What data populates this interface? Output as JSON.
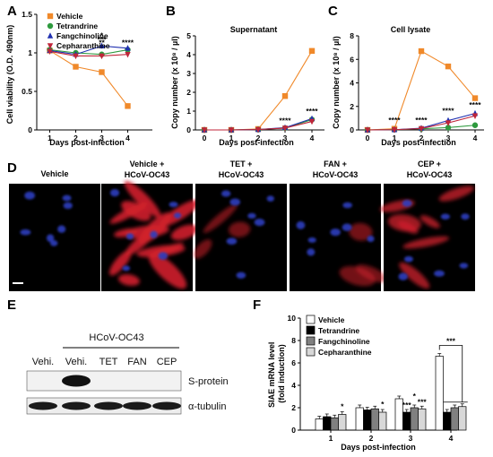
{
  "colors": {
    "vehicle": "#F0892A",
    "tetrandrine": "#2E9A3E",
    "fangchinoline": "#2030B0",
    "cepharanthine": "#C0263A",
    "star_blue": "#3FA7D8",
    "star_red": "#D81F3A",
    "cell_blue": "#2F3FBF",
    "cell_red": "#D0202C"
  },
  "chart_data": [
    {
      "panel": "A",
      "type": "line",
      "xlabel": "Days post-infection",
      "ylabel": "Cell viability (O.D. 490nm)",
      "x": [
        1,
        2,
        3,
        4
      ],
      "ylim": [
        0,
        1.5
      ],
      "yticks": [
        "0",
        "0.5",
        "1",
        "1.5"
      ],
      "legend": "top-left",
      "series": [
        {
          "name": "Vehicle",
          "values": [
            1.03,
            0.82,
            0.75,
            0.31
          ],
          "marker": "square",
          "color": "#F0892A"
        },
        {
          "name": "Tetrandrine",
          "values": [
            1.04,
            1.0,
            0.98,
            1.04
          ],
          "marker": "circle",
          "color": "#2E9A3E"
        },
        {
          "name": "Fangchinoline",
          "values": [
            1.03,
            0.98,
            1.09,
            1.06
          ],
          "marker": "triangle-up",
          "color": "#2030B0"
        },
        {
          "name": "Cepharanthine",
          "values": [
            1.02,
            0.96,
            0.96,
            0.98
          ],
          "marker": "triangle-down",
          "color": "#C0263A"
        }
      ],
      "annotations": [
        {
          "x": 3,
          "y": 1.19,
          "text": "*",
          "color": "#3FA7D8"
        },
        {
          "x": 3,
          "y": 1.14,
          "text": "***",
          "color": "#000000"
        },
        {
          "x": 3,
          "y": 1.1,
          "text": "**",
          "color": "#D81F3A"
        },
        {
          "x": 4,
          "y": 1.1,
          "text": "****",
          "color": "#000000"
        }
      ]
    },
    {
      "panel": "B",
      "type": "line",
      "title": "Supernatant",
      "xlabel": "Days post-infection",
      "ylabel": "Copy number (x 10⁸ / µl)",
      "x": [
        0,
        1,
        2,
        3,
        4
      ],
      "ylim": [
        0,
        5
      ],
      "yticks": [
        "0",
        "1",
        "2",
        "3",
        "4",
        "5"
      ],
      "series": [
        {
          "name": "Vehicle",
          "values": [
            0,
            0,
            0.05,
            1.8,
            4.2
          ],
          "marker": "square",
          "color": "#F0892A"
        },
        {
          "name": "Tetrandrine",
          "values": [
            0,
            0,
            0.02,
            0.1,
            0.55
          ],
          "marker": "circle",
          "color": "#2E9A3E"
        },
        {
          "name": "Fangchinoline",
          "values": [
            0,
            0,
            0.02,
            0.12,
            0.6
          ],
          "marker": "triangle-up",
          "color": "#2030B0"
        },
        {
          "name": "Cepharanthine",
          "values": [
            0,
            0,
            0.02,
            0.1,
            0.45
          ],
          "marker": "triangle-down",
          "color": "#C0263A"
        }
      ],
      "annotations": [
        {
          "x": 3,
          "y": 0.35,
          "text": "****",
          "color": "#000000"
        },
        {
          "x": 4,
          "y": 0.85,
          "text": "****",
          "color": "#000000"
        }
      ]
    },
    {
      "panel": "C",
      "type": "line",
      "title": "Cell lysate",
      "xlabel": "Days post-infection",
      "ylabel": "Copy number (x 10⁸ / µl)",
      "x": [
        0,
        1,
        2,
        3,
        4
      ],
      "ylim": [
        0,
        8
      ],
      "yticks": [
        "0",
        "2",
        "4",
        "6",
        "8"
      ],
      "series": [
        {
          "name": "Vehicle",
          "values": [
            0,
            0.1,
            6.7,
            5.4,
            2.7
          ],
          "marker": "square",
          "color": "#F0892A"
        },
        {
          "name": "Tetrandrine",
          "values": [
            0,
            0.02,
            0.1,
            0.2,
            0.4
          ],
          "marker": "circle",
          "color": "#2E9A3E"
        },
        {
          "name": "Fangchinoline",
          "values": [
            0,
            0.02,
            0.15,
            0.8,
            1.4
          ],
          "marker": "triangle-up",
          "color": "#2030B0"
        },
        {
          "name": "Cepharanthine",
          "values": [
            0,
            0.02,
            0.12,
            0.6,
            1.2
          ],
          "marker": "triangle-down",
          "color": "#C0263A"
        }
      ],
      "annotations": [
        {
          "x": 1,
          "y": 0.6,
          "text": "****",
          "color": "#000000"
        },
        {
          "x": 2,
          "y": 0.6,
          "text": "****",
          "color": "#000000"
        },
        {
          "x": 3,
          "y": 1.4,
          "text": "****",
          "color": "#000000"
        },
        {
          "x": 4,
          "y": 1.9,
          "text": "****",
          "color": "#000000"
        }
      ]
    },
    {
      "panel": "F",
      "type": "bar",
      "xlabel": "Days post-infection",
      "ylabel": "SIAE mRNA level (fold induction)",
      "categories": [
        "1",
        "2",
        "3",
        "4"
      ],
      "ylim": [
        0,
        10
      ],
      "yticks": [
        "0",
        "2",
        "4",
        "6",
        "8",
        "10"
      ],
      "legend": "top-left",
      "series": [
        {
          "name": "Vehicle",
          "values": [
            1.0,
            2.0,
            2.8,
            6.6
          ],
          "fill": "#FFFFFF"
        },
        {
          "name": "Tetrandrine",
          "values": [
            1.2,
            1.8,
            1.6,
            1.6
          ],
          "fill": "#000000"
        },
        {
          "name": "Fangchinoline",
          "values": [
            1.1,
            1.9,
            2.0,
            2.0
          ],
          "fill": "#808080"
        },
        {
          "name": "Cepharanthine",
          "values": [
            1.4,
            1.6,
            1.9,
            2.1
          ],
          "fill": "#D8D8D8"
        }
      ],
      "annotations": [
        {
          "group": "1",
          "text": "*"
        },
        {
          "group": "2",
          "text": "*"
        },
        {
          "group": "3",
          "text": "***"
        },
        {
          "group": "3",
          "text": "*"
        },
        {
          "group": "3",
          "text": "***"
        },
        {
          "group": "4",
          "text": "***"
        }
      ]
    }
  ],
  "panel_letters": {
    "a": "A",
    "b": "B",
    "c": "C",
    "d": "D",
    "e": "E",
    "f": "F"
  },
  "micrographs": {
    "headers": [
      {
        "line1": "Vehicle",
        "line2": ""
      },
      {
        "line1": "Vehicle +",
        "line2": "HCoV-OC43"
      },
      {
        "line1": "TET +",
        "line2": "HCoV-OC43"
      },
      {
        "line1": "FAN +",
        "line2": "HCoV-OC43"
      },
      {
        "line1": "CEP +",
        "line2": "HCoV-OC43"
      }
    ],
    "red_signal": [
      "none",
      "strong",
      "faint",
      "faint",
      "moderate"
    ]
  },
  "blot": {
    "group_label": "HCoV-OC43",
    "lanes": [
      "Vehi.",
      "Vehi.",
      "TET",
      "FAN",
      "CEP"
    ],
    "rows": [
      {
        "label": "S-protein",
        "signal": [
          "none",
          "strong",
          "none",
          "none",
          "none"
        ]
      },
      {
        "label": "α-tubulin",
        "signal": [
          "equal",
          "equal",
          "equal",
          "equal",
          "equal"
        ]
      }
    ]
  }
}
